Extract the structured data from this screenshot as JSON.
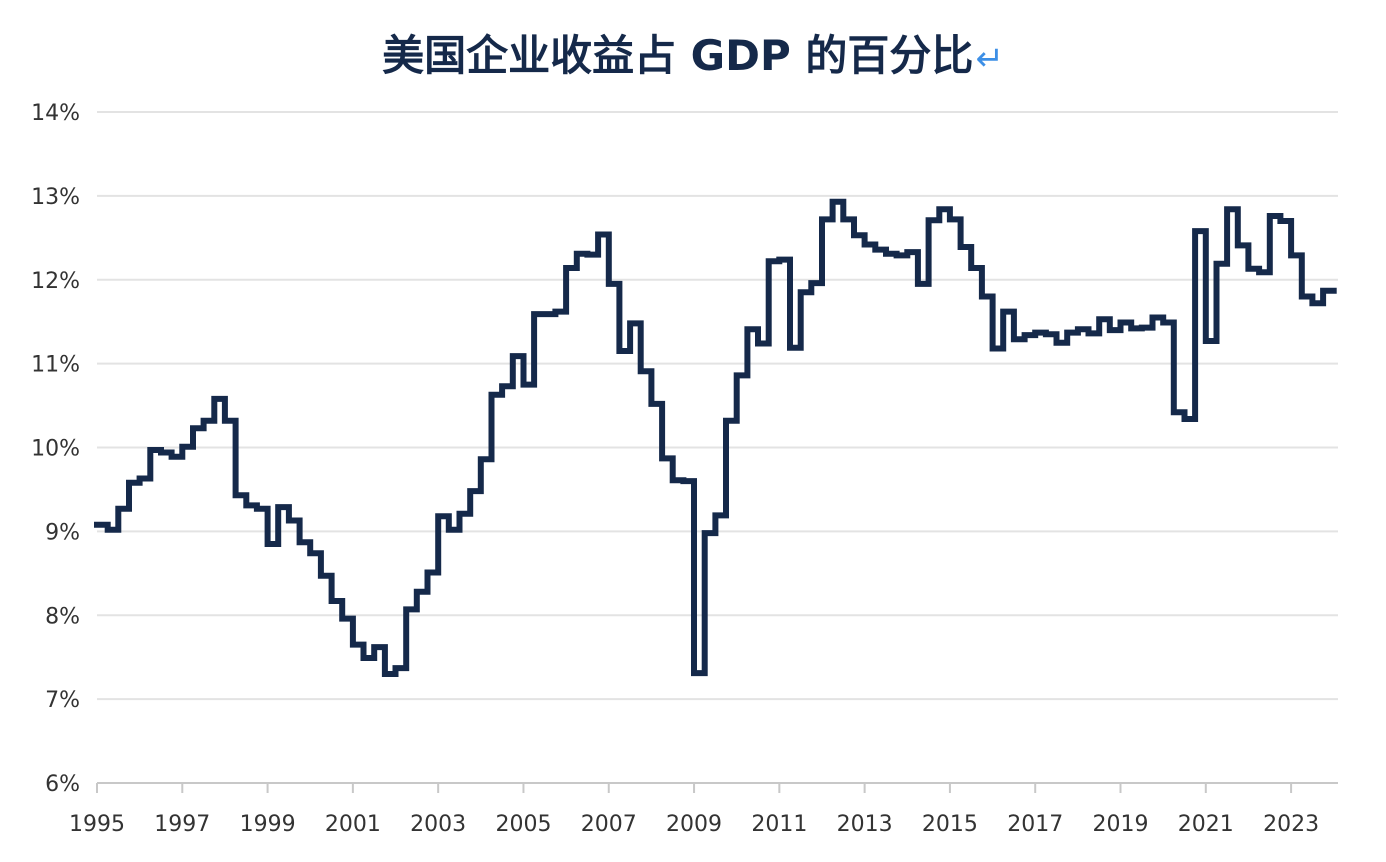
{
  "chart_data": {
    "type": "line",
    "title": "美国企业收益占 GDP 的百分比",
    "title_mark": "↵",
    "xlabel": "",
    "ylabel": "",
    "line_style": "step",
    "xlim": [
      1995,
      2024.1
    ],
    "ylim": [
      6,
      14
    ],
    "yticks": [
      "6%",
      "7%",
      "8%",
      "9%",
      "10%",
      "11%",
      "12%",
      "13%",
      "14%"
    ],
    "xticks": [
      "1995",
      "1997",
      "1999",
      "2001",
      "2003",
      "2005",
      "2007",
      "2009",
      "2011",
      "2013",
      "2015",
      "2017",
      "2019",
      "2021",
      "2023"
    ],
    "grid": "horizontal",
    "legend": "none",
    "color": "#15294a",
    "series": [
      {
        "x": [
          1995.0,
          1995.25,
          1995.5,
          1995.75,
          1996.0,
          1996.25,
          1996.5,
          1996.75,
          1997.0,
          1997.25,
          1997.5,
          1997.75,
          1998.0,
          1998.25,
          1998.5,
          1998.75,
          1999.0,
          1999.25,
          1999.5,
          1999.75,
          2000.0,
          2000.25,
          2000.5,
          2000.75,
          2001.0,
          2001.25,
          2001.5,
          2001.75,
          2002.0,
          2002.25,
          2002.5,
          2002.75,
          2003.0,
          2003.25,
          2003.5,
          2003.75,
          2004.0,
          2004.25,
          2004.5,
          2004.75,
          2005.0,
          2005.25,
          2005.5,
          2005.75,
          2006.0,
          2006.25,
          2006.5,
          2006.75,
          2007.0,
          2007.25,
          2007.5,
          2007.75,
          2008.0,
          2008.25,
          2008.5,
          2008.75,
          2009.0,
          2009.25,
          2009.5,
          2009.75,
          2010.0,
          2010.25,
          2010.5,
          2010.75,
          2011.0,
          2011.25,
          2011.5,
          2011.75,
          2012.0,
          2012.25,
          2012.5,
          2012.75,
          2013.0,
          2013.25,
          2013.5,
          2013.75,
          2014.0,
          2014.25,
          2014.5,
          2014.75,
          2015.0,
          2015.25,
          2015.5,
          2015.75,
          2016.0,
          2016.25,
          2016.5,
          2016.75,
          2017.0,
          2017.25,
          2017.5,
          2017.75,
          2018.0,
          2018.25,
          2018.5,
          2018.75,
          2019.0,
          2019.25,
          2019.5,
          2019.75,
          2020.0,
          2020.25,
          2020.5,
          2020.75,
          2021.0,
          2021.25,
          2021.5,
          2021.75,
          2022.0,
          2022.25,
          2022.5,
          2022.75,
          2023.0,
          2023.25,
          2023.5,
          2023.75
        ],
        "values": [
          9.08,
          9.02,
          9.27,
          9.58,
          9.63,
          9.97,
          9.94,
          9.89,
          10.01,
          10.23,
          10.32,
          10.58,
          10.32,
          9.43,
          9.31,
          9.27,
          8.85,
          9.29,
          9.13,
          8.87,
          8.74,
          8.47,
          8.17,
          7.96,
          7.65,
          7.49,
          7.62,
          7.3,
          7.37,
          8.07,
          8.28,
          8.51,
          9.18,
          9.02,
          9.21,
          9.48,
          9.86,
          10.63,
          10.73,
          11.09,
          10.75,
          11.59,
          11.59,
          11.62,
          12.14,
          12.31,
          12.3,
          12.54,
          11.95,
          11.15,
          11.48,
          10.91,
          10.52,
          9.87,
          9.61,
          9.6,
          7.31,
          8.98,
          9.19,
          10.32,
          10.86,
          11.41,
          11.24,
          12.22,
          12.24,
          11.19,
          11.85,
          11.96,
          12.72,
          12.93,
          12.72,
          12.53,
          12.42,
          12.36,
          12.31,
          12.29,
          12.33,
          11.95,
          12.71,
          12.84,
          12.72,
          12.39,
          12.14,
          11.8,
          11.18,
          11.62,
          11.29,
          11.34,
          11.37,
          11.35,
          11.25,
          11.37,
          11.41,
          11.36,
          11.53,
          11.4,
          11.49,
          11.42,
          11.43,
          11.55,
          11.49,
          10.42,
          10.34,
          12.58,
          11.27,
          12.19,
          12.84,
          12.41,
          12.13,
          12.09,
          12.76,
          12.7,
          12.29,
          11.8,
          11.72,
          11.87
        ]
      }
    ]
  }
}
